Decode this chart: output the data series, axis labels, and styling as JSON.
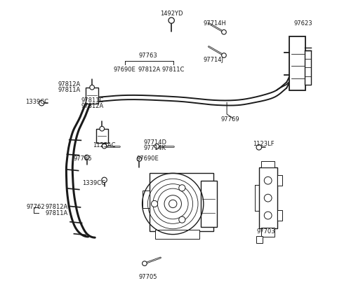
{
  "bg_color": "#ffffff",
  "line_color": "#1a1a1a",
  "figsize": [
    4.8,
    4.24
  ],
  "dpi": 100,
  "label_positions": {
    "1492YD": [
      0.51,
      0.963,
      "center"
    ],
    "97714H": [
      0.62,
      0.93,
      "left"
    ],
    "97623": [
      0.93,
      0.93,
      "left"
    ],
    "97763": [
      0.43,
      0.82,
      "center"
    ],
    "97714J": [
      0.62,
      0.805,
      "left"
    ],
    "97690E_t": [
      0.35,
      0.77,
      "center"
    ],
    "97812A_t": [
      0.435,
      0.77,
      "center"
    ],
    "97811C_t": [
      0.515,
      0.77,
      "center"
    ],
    "97812A_l": [
      0.12,
      0.72,
      "left"
    ],
    "97811A_l": [
      0.12,
      0.7,
      "left"
    ],
    "97811C_m": [
      0.2,
      0.665,
      "left"
    ],
    "97812A_m": [
      0.2,
      0.645,
      "left"
    ],
    "1339CC_l": [
      0.01,
      0.66,
      "left"
    ],
    "97769": [
      0.68,
      0.6,
      "left"
    ],
    "1125AC": [
      0.24,
      0.51,
      "left"
    ],
    "97714D": [
      0.415,
      0.52,
      "left"
    ],
    "97714K": [
      0.415,
      0.5,
      "left"
    ],
    "97785": [
      0.175,
      0.465,
      "left"
    ],
    "97690E_m": [
      0.39,
      0.465,
      "left"
    ],
    "1339CC_b": [
      0.245,
      0.38,
      "center"
    ],
    "97762": [
      0.012,
      0.298,
      "left"
    ],
    "97812A_b": [
      0.078,
      0.298,
      "left"
    ],
    "97811A_b": [
      0.078,
      0.278,
      "left"
    ],
    "97705": [
      0.43,
      0.058,
      "center"
    ],
    "1123LF": [
      0.79,
      0.515,
      "left"
    ],
    "97703": [
      0.835,
      0.215,
      "center"
    ]
  },
  "label_texts": {
    "1492YD": "1492YD",
    "97714H": "97714H",
    "97623": "97623",
    "97763": "97763",
    "97714J": "97714J",
    "97690E_t": "97690E",
    "97812A_t": "97812A",
    "97811C_t": "97811C",
    "97812A_l": "97812A",
    "97811A_l": "97811A",
    "97811C_m": "97811C",
    "97812A_m": "97812A",
    "1339CC_l": "1339CC",
    "97769": "97769",
    "1125AC": "1125AC",
    "97714D": "97714D",
    "97714K": "97714K",
    "97785": "97785",
    "97690E_m": "97690E",
    "1339CC_b": "1339CC",
    "97762": "97762",
    "97812A_b": "97812A",
    "97811A_b": "97811A",
    "97705": "97705",
    "1123LF": "1123LF",
    "97703": "97703"
  }
}
